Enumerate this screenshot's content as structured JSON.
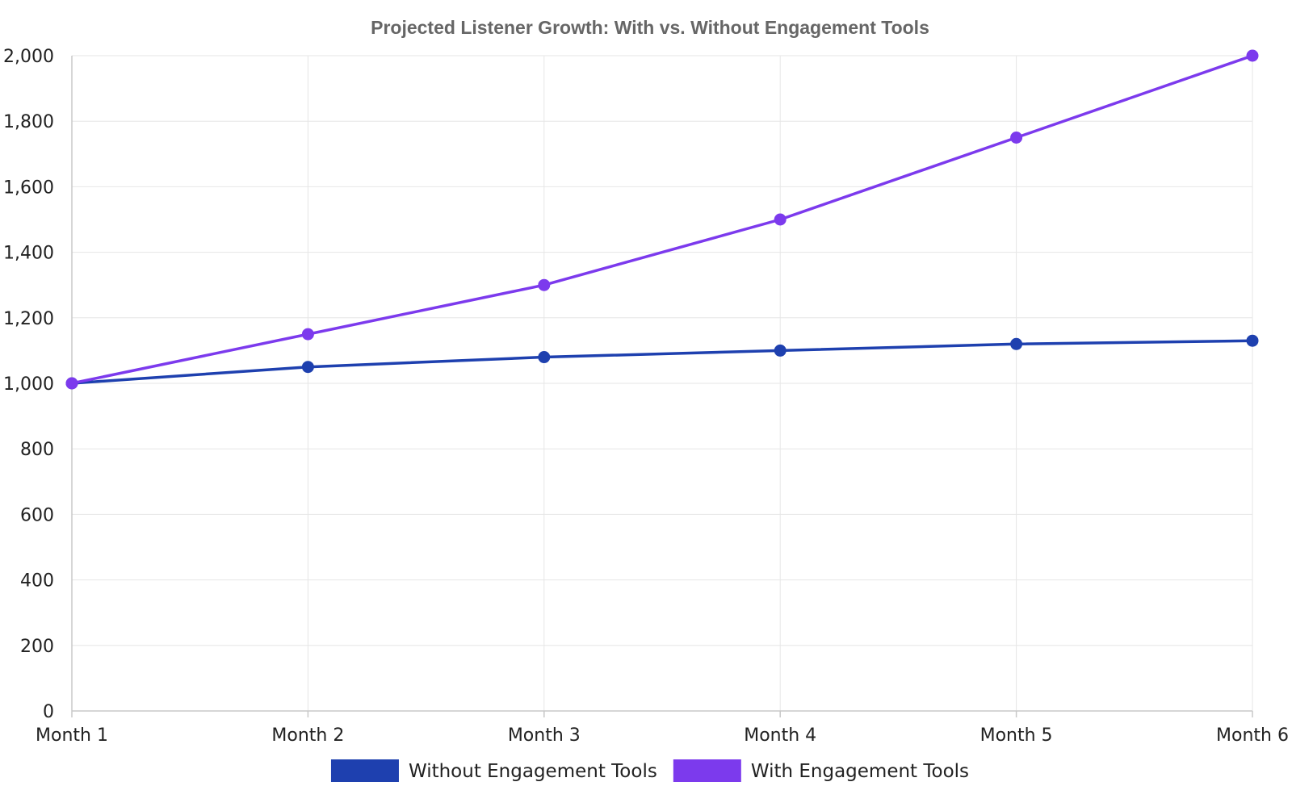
{
  "chart_data": {
    "type": "line",
    "title": "Projected Listener Growth: With vs. Without Engagement Tools",
    "xlabel": "",
    "ylabel": "",
    "categories": [
      "Month 1",
      "Month 2",
      "Month 3",
      "Month 4",
      "Month 5",
      "Month 6"
    ],
    "ylim": [
      0,
      2000
    ],
    "y_ticks": [
      0,
      200,
      400,
      600,
      800,
      1000,
      1200,
      1400,
      1600,
      1800,
      2000
    ],
    "y_tick_labels": [
      "0",
      "200",
      "400",
      "600",
      "800",
      "1,000",
      "1,200",
      "1,400",
      "1,600",
      "1,800",
      "2,000"
    ],
    "grid": true,
    "legend_position": "bottom",
    "series": [
      {
        "name": "Without Engagement Tools",
        "color": "#1e40af",
        "values": [
          1000,
          1050,
          1080,
          1100,
          1120,
          1130
        ]
      },
      {
        "name": "With Engagement Tools",
        "color": "#7c3aed",
        "values": [
          1000,
          1150,
          1300,
          1500,
          1750,
          2000
        ]
      }
    ]
  }
}
